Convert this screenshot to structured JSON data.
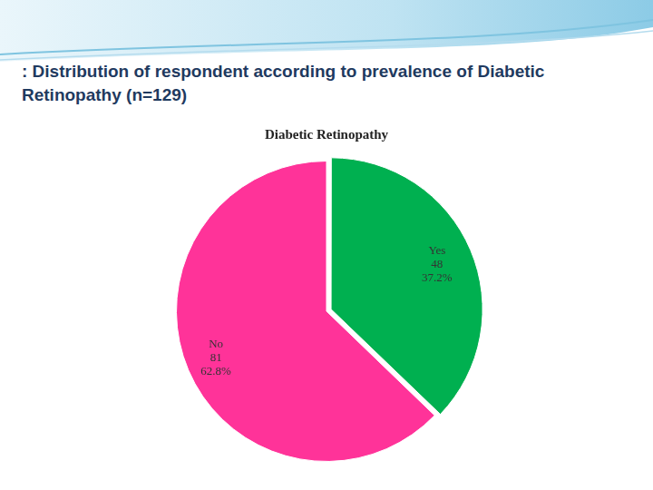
{
  "heading": ": Distribution of respondent according to prevalence of Diabetic Retinopathy (n=129)",
  "chart_data": {
    "type": "pie",
    "title": "Diabetic Retinopathy",
    "categories": [
      "Yes",
      "No"
    ],
    "values": [
      37.2,
      62.8
    ],
    "value_labels": [
      "37.2%",
      "62.8%"
    ],
    "counts": [
      48,
      81
    ],
    "colors": [
      "#00b050",
      "#ff3399"
    ],
    "data_labels": true
  }
}
